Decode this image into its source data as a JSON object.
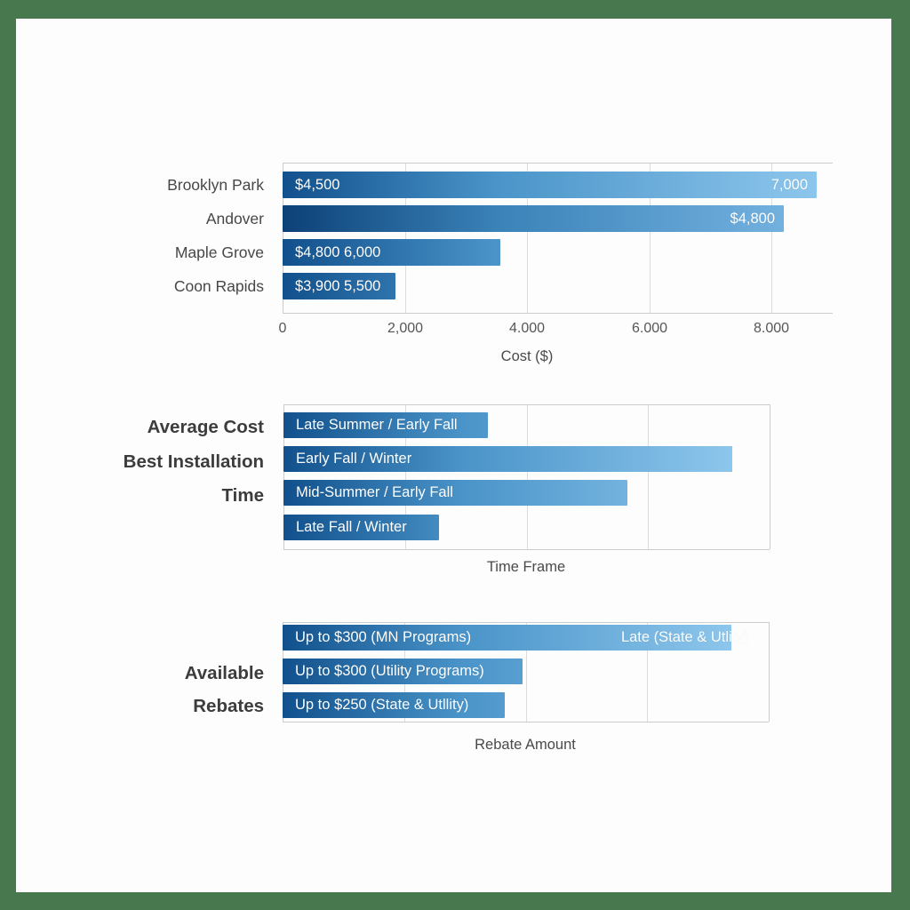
{
  "page": {
    "frame_color": "#48794e",
    "background": "#fdfdfd"
  },
  "colors": {
    "bar_gradient_start": "#11508c",
    "bar_gradient_mid": "#4a94c9",
    "bar_gradient_end": "#8dc6ec",
    "bar_dark_gradient_start": "#0c4177",
    "bar_dark_gradient_mid": "#3a82b8",
    "bar_dark_gradient_end": "#79b6e3",
    "bar_text": "#ffffff",
    "gridline": "#dcdcdc",
    "axis_text": "#565656",
    "label_text": "#474747",
    "side_label_text": "#3c3c3c"
  },
  "chart_data": [
    {
      "type": "bar",
      "orientation": "horizontal",
      "title": "",
      "xlabel": "Cost ($)",
      "ylabel": "",
      "xlim": [
        0,
        9000
      ],
      "grid": true,
      "legend": "none",
      "x_ticks": [
        {
          "value": 0,
          "label": "0"
        },
        {
          "value": 2000,
          "label": "2,000"
        },
        {
          "value": 4000,
          "label": "4.000"
        },
        {
          "value": 6000,
          "label": "6.000"
        },
        {
          "value": 8000,
          "label": "8.000"
        }
      ],
      "rows": [
        {
          "category": "Brooklyn Park",
          "value": 8740,
          "bar_text_left": "$4,500",
          "bar_text_right": "7,000",
          "shade": "normal"
        },
        {
          "category": "Andover",
          "value": 8210,
          "bar_text_left": "",
          "bar_text_right": "$4,800",
          "shade": "dark"
        },
        {
          "category": "Maple Grove",
          "value": 3560,
          "bar_text_left": "$4,800 6,000",
          "bar_text_right": "",
          "shade": "normal"
        },
        {
          "category": "Coon Rapids",
          "value": 1850,
          "bar_text_left": "$3,900 5,500",
          "bar_text_right": "",
          "shade": "normal"
        }
      ]
    },
    {
      "type": "bar",
      "orientation": "horizontal",
      "title": "",
      "xlabel": "Time Frame",
      "ylabel_lines": [
        "Average Cost",
        "Best Installation",
        "Time"
      ],
      "xlim": [
        0,
        8000
      ],
      "grid": true,
      "legend": "none",
      "x_ticks": [],
      "rows": [
        {
          "category": "",
          "value": 3360,
          "bar_text_left": "Late Summer / Early Fall",
          "bar_text_right": "",
          "shade": "normal"
        },
        {
          "category": "",
          "value": 7660,
          "bar_text_left": "Early Fall / Winter",
          "bar_text_right": "",
          "shade": "normal"
        },
        {
          "category": "",
          "value": 5660,
          "bar_text_left": "Mid-Summer / Early Fall",
          "bar_text_right": "",
          "shade": "normal"
        },
        {
          "category": "",
          "value": 2560,
          "bar_text_left": "Late Fall / Winter",
          "bar_text_right": "",
          "shade": "normal"
        }
      ]
    },
    {
      "type": "bar",
      "orientation": "horizontal",
      "title": "",
      "xlabel": "Rebate Amount",
      "ylabel_lines": [
        "Available",
        "Rebates"
      ],
      "xlim": [
        0,
        8000
      ],
      "grid": true,
      "legend": "none",
      "x_ticks": [],
      "rows": [
        {
          "category": "",
          "value": 7810,
          "bar_text_left": "Up to $300 (MN Programs)",
          "bar_text_right": "Late (State & Utlity)",
          "shade": "normal"
        },
        {
          "category": "",
          "value": 3950,
          "bar_text_left": "Up to $300 (Utility Programs)",
          "bar_text_right": "",
          "shade": "normal"
        },
        {
          "category": "",
          "value": 3650,
          "bar_text_left": "Up to $250 (State & Utllity)",
          "bar_text_right": "",
          "shade": "normal"
        }
      ]
    }
  ]
}
